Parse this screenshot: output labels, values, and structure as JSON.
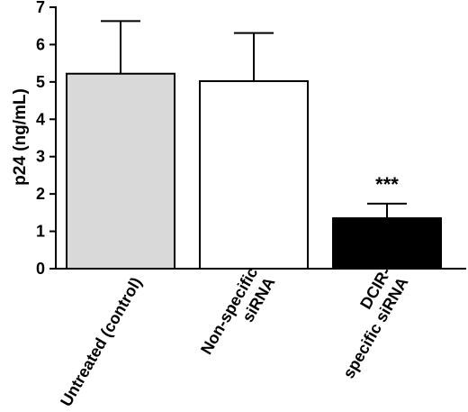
{
  "chart_data": {
    "type": "bar",
    "ylabel": "p24 (ng/mL)",
    "ylim": [
      0,
      7
    ],
    "yticks": [
      "0",
      "1",
      "2",
      "3",
      "4",
      "5",
      "6",
      "7"
    ],
    "categories": [
      [
        "Untreated (control)"
      ],
      [
        "Non-specific",
        "siRNA"
      ],
      [
        "DCIR-",
        "specific siRNA"
      ]
    ],
    "values": [
      5.22,
      5.02,
      1.35
    ],
    "error_upper": [
      6.63,
      6.31,
      1.74
    ],
    "bar_colors": [
      "#d9d9d9",
      "#ffffff",
      "#000000"
    ],
    "annotations": [
      "",
      "",
      "***"
    ],
    "grid": false
  }
}
